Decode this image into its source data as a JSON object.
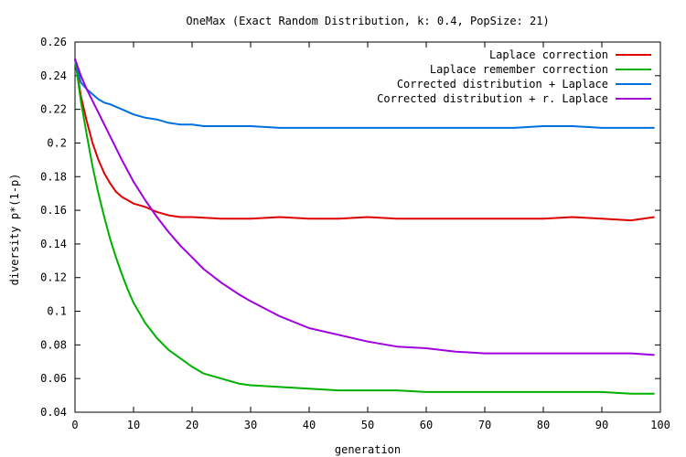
{
  "chart_data": {
    "type": "line",
    "title": "OneMax (Exact Random Distribution, k: 0.4, PopSize: 21)",
    "xlabel": "generation",
    "ylabel": "diversity p*(1-p)",
    "xlim": [
      0,
      100
    ],
    "ylim": [
      0.04,
      0.26
    ],
    "x_ticks": [
      "0",
      "10",
      "20",
      "30",
      "40",
      "50",
      "60",
      "70",
      "80",
      "90",
      "100"
    ],
    "y_ticks": [
      "0.04",
      "0.06",
      "0.08",
      "0.1",
      "0.12",
      "0.14",
      "0.16",
      "0.18",
      "0.2",
      "0.22",
      "0.24",
      "0.26"
    ],
    "legend_position": "top-right",
    "grid": false,
    "series": [
      {
        "name": "Laplace correction",
        "color": "#e00000",
        "x": [
          0,
          1,
          2,
          3,
          4,
          5,
          6,
          7,
          8,
          9,
          10,
          12,
          14,
          16,
          18,
          20,
          25,
          30,
          35,
          40,
          45,
          50,
          55,
          60,
          65,
          70,
          75,
          80,
          85,
          90,
          95,
          99
        ],
        "y": [
          0.25,
          0.228,
          0.213,
          0.2,
          0.19,
          0.182,
          0.176,
          0.171,
          0.168,
          0.166,
          0.164,
          0.162,
          0.159,
          0.157,
          0.156,
          0.156,
          0.155,
          0.155,
          0.156,
          0.155,
          0.155,
          0.156,
          0.155,
          0.155,
          0.155,
          0.155,
          0.155,
          0.155,
          0.156,
          0.155,
          0.154,
          0.156
        ]
      },
      {
        "name": "Laplace remember correction",
        "color": "#00b000",
        "x": [
          0,
          1,
          2,
          3,
          4,
          5,
          6,
          7,
          8,
          9,
          10,
          12,
          14,
          16,
          18,
          20,
          22,
          25,
          28,
          30,
          35,
          40,
          45,
          50,
          55,
          60,
          65,
          70,
          75,
          80,
          85,
          90,
          95,
          99
        ],
        "y": [
          0.25,
          0.225,
          0.205,
          0.186,
          0.17,
          0.156,
          0.143,
          0.132,
          0.122,
          0.113,
          0.105,
          0.093,
          0.084,
          0.077,
          0.072,
          0.067,
          0.063,
          0.06,
          0.057,
          0.056,
          0.055,
          0.054,
          0.053,
          0.053,
          0.053,
          0.052,
          0.052,
          0.052,
          0.052,
          0.052,
          0.052,
          0.052,
          0.051,
          0.051
        ]
      },
      {
        "name": "Corrected distribution + Laplace",
        "color": "#0070e0",
        "x": [
          0,
          1,
          2,
          3,
          4,
          5,
          6,
          8,
          10,
          12,
          14,
          16,
          18,
          20,
          22,
          25,
          30,
          35,
          40,
          45,
          50,
          55,
          60,
          65,
          70,
          75,
          80,
          85,
          90,
          95,
          99
        ],
        "y": [
          0.25,
          0.236,
          0.232,
          0.229,
          0.226,
          0.224,
          0.223,
          0.22,
          0.217,
          0.215,
          0.214,
          0.212,
          0.211,
          0.211,
          0.21,
          0.21,
          0.21,
          0.209,
          0.209,
          0.209,
          0.209,
          0.209,
          0.209,
          0.209,
          0.209,
          0.209,
          0.21,
          0.21,
          0.209,
          0.209,
          0.209
        ]
      },
      {
        "name": "Corrected distribution + r. Laplace",
        "color": "#a000e0",
        "x": [
          0,
          1,
          2,
          3,
          4,
          5,
          6,
          8,
          10,
          12,
          14,
          16,
          18,
          20,
          22,
          25,
          28,
          30,
          35,
          40,
          45,
          50,
          55,
          60,
          65,
          70,
          75,
          80,
          85,
          90,
          95,
          99
        ],
        "y": [
          0.25,
          0.24,
          0.232,
          0.225,
          0.218,
          0.211,
          0.204,
          0.19,
          0.177,
          0.166,
          0.156,
          0.147,
          0.139,
          0.132,
          0.125,
          0.117,
          0.11,
          0.106,
          0.097,
          0.09,
          0.086,
          0.082,
          0.079,
          0.078,
          0.076,
          0.075,
          0.075,
          0.075,
          0.075,
          0.075,
          0.075,
          0.074
        ]
      }
    ]
  }
}
